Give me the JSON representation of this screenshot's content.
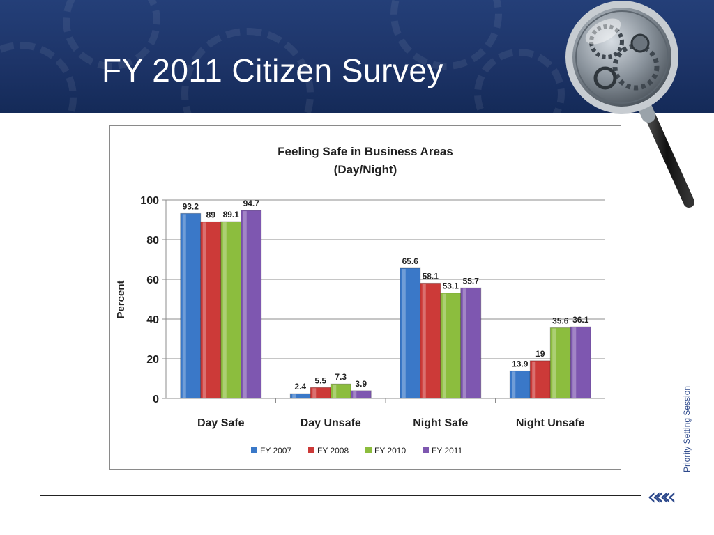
{
  "slide": {
    "title": "FY 2011 Citizen Survey",
    "side_label": "Priority Setting Session",
    "footer_glyph": "«««"
  },
  "colors": {
    "header": "#1d3468",
    "accent": "#2e4a8c",
    "fy2007": "#3a78c8",
    "fy2008": "#cc3a38",
    "fy2010": "#8cbd3e",
    "fy2011": "#7e57b0"
  },
  "chart_data": {
    "type": "bar",
    "title": "Feeling Safe in Business Areas",
    "subtitle": "(Day/Night)",
    "ylabel": "Percent",
    "xlabel": "",
    "ylim": [
      0,
      100
    ],
    "yticks": [
      0,
      20,
      40,
      60,
      80,
      100
    ],
    "grid": true,
    "legend_position": "bottom",
    "categories": [
      "Day Safe",
      "Day Unsafe",
      "Night Safe",
      "Night Unsafe"
    ],
    "series": [
      {
        "name": "FY 2007",
        "color": "#3a78c8",
        "values": [
          93.2,
          2.4,
          65.6,
          13.9
        ]
      },
      {
        "name": "FY 2008",
        "color": "#cc3a38",
        "values": [
          89,
          5.5,
          58.1,
          19
        ]
      },
      {
        "name": "FY 2010",
        "color": "#8cbd3e",
        "values": [
          89.1,
          7.3,
          53.1,
          35.6
        ]
      },
      {
        "name": "FY 2011",
        "color": "#7e57b0",
        "values": [
          94.7,
          3.9,
          55.7,
          36.1
        ]
      }
    ]
  }
}
